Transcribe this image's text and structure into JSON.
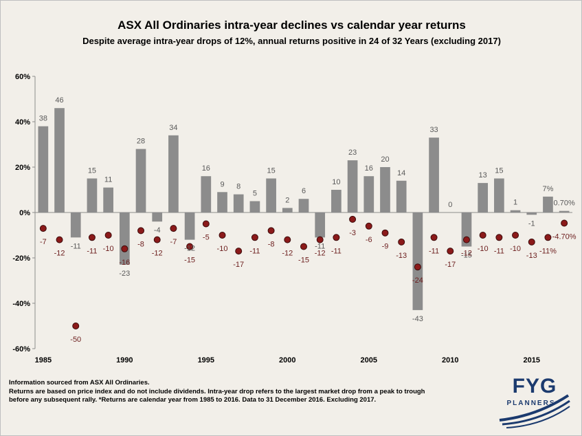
{
  "chart_data": {
    "type": "bar",
    "title": "ASX All Ordinaries intra-year declines vs calendar year returns",
    "subtitle": "Despite average intra-year drops of 12%, annual returns positive in 24 of 32 Years (excluding 2017)",
    "xlabel": "",
    "ylabel": "",
    "ylim": [
      -60,
      60
    ],
    "y_ticks": [
      60,
      40,
      20,
      0,
      -20,
      -40,
      -60
    ],
    "y_tick_labels": [
      "60%",
      "40%",
      "20%",
      "0%",
      "-20%",
      "-40%",
      "-60%"
    ],
    "x_tick_labels": [
      "1985",
      "1990",
      "1995",
      "2000",
      "2005",
      "2010",
      "2015"
    ],
    "x_tick_years": [
      1985,
      1990,
      1995,
      2000,
      2005,
      2010,
      2015
    ],
    "years": [
      1985,
      1986,
      1987,
      1988,
      1989,
      1990,
      1991,
      1992,
      1993,
      1994,
      1995,
      1996,
      1997,
      1998,
      1999,
      2000,
      2001,
      2002,
      2003,
      2004,
      2005,
      2006,
      2007,
      2008,
      2009,
      2010,
      2011,
      2012,
      2013,
      2014,
      2015,
      2016,
      2017
    ],
    "series": [
      {
        "name": "Calendar year return",
        "color": "#8c8c8c",
        "values": [
          38,
          46,
          -11,
          15,
          11,
          -23,
          28,
          -4,
          34,
          -12,
          16,
          9,
          8,
          5,
          15,
          2,
          6,
          -11,
          10,
          23,
          16,
          20,
          14,
          -43,
          33,
          0,
          -15,
          13,
          15,
          1,
          -1,
          7,
          0.7
        ],
        "labels": [
          "38",
          "46",
          "-11",
          "15",
          "11",
          "-23",
          "28",
          "-4",
          "34",
          "-12",
          "16",
          "9",
          "8",
          "5",
          "15",
          "2",
          "6",
          "-11",
          "10",
          "23",
          "16",
          "20",
          "14",
          "-43",
          "33",
          "0",
          "-15",
          "13",
          "15",
          "1",
          "-1",
          "7%",
          "0.70%"
        ]
      },
      {
        "name": "Intra-year decline",
        "color": "#6b1c1c",
        "values": [
          -7,
          -12,
          -50,
          -11,
          -10,
          -16,
          -8,
          -12,
          -7,
          -15,
          -5,
          -10,
          -17,
          -11,
          -8,
          -12,
          -15,
          -12,
          -11,
          -3,
          -6,
          -9,
          -13,
          -24,
          -11,
          -17,
          -12,
          -10,
          -11,
          -10,
          -13,
          -11,
          -4.7
        ],
        "labels": [
          "-7",
          "-12",
          "-50",
          "-11",
          "-10",
          "-16",
          "-8",
          "-12",
          "-7",
          "-15",
          "-5",
          "-10",
          "-17",
          "-11",
          "-8",
          "-12",
          "-15",
          "-12",
          "-11",
          "-3",
          "-6",
          "-9",
          "-13",
          "-24",
          "-11",
          "-17",
          "-12",
          "-10",
          "-11",
          "-10",
          "-13",
          "-11%",
          "-4.70%"
        ]
      }
    ]
  },
  "footer": {
    "line1": "Information sourced from ASX All Ordinaries.",
    "line2": "Returns are based on price index and do not include dividends. Intra-year drop refers to the largest market drop from a peak to trough",
    "line3": "before any subsequent rally. *Returns are calendar year from 1985 to 2016. Data to 31 December 2016. Excluding 2017."
  },
  "logo": {
    "name": "FYG",
    "tagline": "PLANNERS"
  }
}
